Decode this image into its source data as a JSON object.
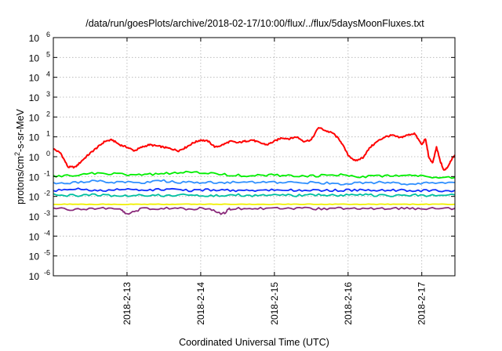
{
  "chart_data": {
    "type": "line",
    "title": "/data/run/goesPlots/archive/2018-02-17/10:00/flux/../flux/5daysMoonFluxes.txt",
    "xlabel": "Coordinated Universal Time (UTC)",
    "ylabel": {
      "prefix": "protons/cm",
      "superscript": "2",
      "suffix": "-s-sr-MeV"
    },
    "y_scale": "log",
    "ylim": [
      1e-06,
      1000000.0
    ],
    "y_ticks": [
      {
        "base": "10",
        "exp": "-6",
        "value": 1e-06
      },
      {
        "base": "10",
        "exp": "-5",
        "value": 1e-05
      },
      {
        "base": "10",
        "exp": "-4",
        "value": 0.0001
      },
      {
        "base": "10",
        "exp": "-3",
        "value": 0.001
      },
      {
        "base": "10",
        "exp": "-2",
        "value": 0.01
      },
      {
        "base": "10",
        "exp": "-1",
        "value": 0.1
      },
      {
        "base": "10",
        "exp": "0",
        "value": 1
      },
      {
        "base": "10",
        "exp": "1",
        "value": 10
      },
      {
        "base": "10",
        "exp": "2",
        "value": 100
      },
      {
        "base": "10",
        "exp": "3",
        "value": 1000
      },
      {
        "base": "10",
        "exp": "4",
        "value": 10000
      },
      {
        "base": "10",
        "exp": "5",
        "value": 100000
      },
      {
        "base": "10",
        "exp": "6",
        "value": 1000000
      }
    ],
    "x_unit": "day",
    "xlim": [
      0,
      5.45
    ],
    "x_ticks": [
      {
        "label": "2018-2-13",
        "value": 1.0
      },
      {
        "label": "2018-2-14",
        "value": 2.0
      },
      {
        "label": "2018-2-15",
        "value": 3.0
      },
      {
        "label": "2018-2-16",
        "value": 4.0
      },
      {
        "label": "2018-2-17",
        "value": 5.0
      }
    ],
    "grid": true,
    "legend": "none",
    "series": [
      {
        "color": "#ff0000",
        "x": [
          0.0,
          0.1,
          0.2,
          0.3,
          0.4,
          0.5,
          0.6,
          0.7,
          0.8,
          0.9,
          1.0,
          1.1,
          1.2,
          1.3,
          1.4,
          1.5,
          1.6,
          1.7,
          1.8,
          1.9,
          2.0,
          2.1,
          2.2,
          2.3,
          2.4,
          2.5,
          2.6,
          2.7,
          2.8,
          2.9,
          3.0,
          3.1,
          3.2,
          3.3,
          3.4,
          3.5,
          3.6,
          3.7,
          3.8,
          3.9,
          4.0,
          4.1,
          4.2,
          4.3,
          4.4,
          4.5,
          4.6,
          4.7,
          4.8,
          4.9,
          5.0,
          5.05,
          5.1,
          5.15,
          5.2,
          5.25,
          5.3,
          5.35,
          5.4,
          5.45
        ],
        "y": [
          2.5,
          1.5,
          0.3,
          0.3,
          0.7,
          1.5,
          3,
          6,
          7,
          4,
          3,
          2,
          3,
          4,
          3.5,
          3,
          2.5,
          2,
          3,
          5,
          7,
          6,
          3,
          4,
          6,
          5,
          6,
          7,
          5,
          4,
          6,
          9,
          8,
          10,
          6,
          7,
          30,
          20,
          15,
          6,
          1.2,
          0.6,
          0.9,
          3,
          6,
          10,
          12,
          9,
          12,
          15,
          4,
          8,
          0.8,
          0.5,
          3,
          0.6,
          0.2,
          0.3,
          0.7,
          1.2
        ]
      },
      {
        "color": "#00ee00",
        "x": [
          0.0,
          0.3,
          0.6,
          0.9,
          1.2,
          1.5,
          1.8,
          2.1,
          2.4,
          2.7,
          3.0,
          3.3,
          3.6,
          3.9,
          4.2,
          4.5,
          4.8,
          5.1,
          5.45
        ],
        "y": [
          0.1,
          0.12,
          0.15,
          0.13,
          0.12,
          0.14,
          0.16,
          0.15,
          0.12,
          0.11,
          0.12,
          0.1,
          0.11,
          0.12,
          0.1,
          0.11,
          0.12,
          0.1,
          0.09
        ]
      },
      {
        "color": "#3090ff",
        "x": [
          0.0,
          0.3,
          0.6,
          0.9,
          1.2,
          1.5,
          1.8,
          2.1,
          2.4,
          2.7,
          3.0,
          3.3,
          3.6,
          3.9,
          4.2,
          4.5,
          4.8,
          5.1,
          5.45
        ],
        "y": [
          0.05,
          0.05,
          0.06,
          0.05,
          0.05,
          0.06,
          0.05,
          0.05,
          0.05,
          0.05,
          0.05,
          0.05,
          0.05,
          0.04,
          0.05,
          0.05,
          0.04,
          0.05,
          0.05
        ]
      },
      {
        "color": "#1030ff",
        "x": [
          0.0,
          0.3,
          0.6,
          0.9,
          1.2,
          1.5,
          1.8,
          2.1,
          2.4,
          2.7,
          3.0,
          3.3,
          3.6,
          3.9,
          4.2,
          4.5,
          4.8,
          5.1,
          5.45
        ],
        "y": [
          0.02,
          0.025,
          0.02,
          0.022,
          0.02,
          0.023,
          0.02,
          0.021,
          0.02,
          0.02,
          0.022,
          0.02,
          0.02,
          0.02,
          0.021,
          0.02,
          0.02,
          0.02,
          0.02
        ]
      },
      {
        "color": "#00c0a0",
        "x": [
          0.0,
          0.3,
          0.6,
          0.9,
          1.2,
          1.5,
          1.8,
          2.1,
          2.4,
          2.7,
          3.0,
          3.3,
          3.6,
          3.9,
          4.2,
          4.5,
          4.8,
          5.1,
          5.45
        ],
        "y": [
          0.012,
          0.011,
          0.012,
          0.011,
          0.012,
          0.011,
          0.012,
          0.011,
          0.012,
          0.011,
          0.012,
          0.011,
          0.012,
          0.011,
          0.012,
          0.011,
          0.012,
          0.011,
          0.012
        ]
      },
      {
        "color": "#f0f000",
        "x": [
          0.0,
          0.3,
          0.6,
          0.9,
          1.2,
          1.5,
          1.8,
          2.1,
          2.4,
          2.7,
          3.0,
          3.3,
          3.6,
          3.9,
          4.2,
          4.5,
          4.8,
          5.1,
          5.45
        ],
        "y": [
          0.004,
          0.004,
          0.004,
          0.004,
          0.004,
          0.004,
          0.004,
          0.004,
          0.004,
          0.004,
          0.004,
          0.004,
          0.004,
          0.004,
          0.004,
          0.004,
          0.004,
          0.004,
          0.004
        ]
      },
      {
        "color": "#8a2a7a",
        "x": [
          0.0,
          0.3,
          0.6,
          0.9,
          1.0,
          1.2,
          1.5,
          1.8,
          2.1,
          2.3,
          2.4,
          2.7,
          3.0,
          3.3,
          3.6,
          3.9,
          4.2,
          4.5,
          4.8,
          5.1,
          5.45
        ],
        "y": [
          0.0025,
          0.0022,
          0.0025,
          0.0023,
          0.0012,
          0.0024,
          0.0025,
          0.0024,
          0.0025,
          0.0013,
          0.0024,
          0.0025,
          0.0024,
          0.0025,
          0.0024,
          0.0025,
          0.0025,
          0.0024,
          0.0025,
          0.0024,
          0.0025
        ]
      }
    ]
  }
}
